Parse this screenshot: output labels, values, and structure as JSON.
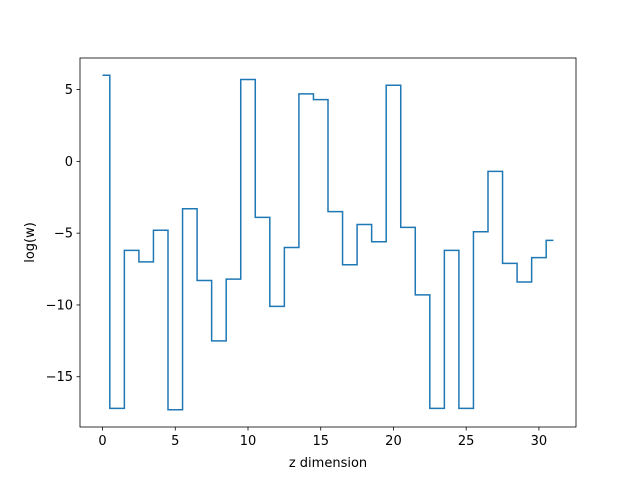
{
  "chart_data": {
    "type": "line",
    "drawstyle": "steps-mid",
    "title": "",
    "xlabel": "z dimension",
    "ylabel": "log(w)",
    "xlim": [
      -1.55,
      32.55
    ],
    "ylim": [
      -18.5,
      7.2
    ],
    "xticks": [
      0,
      5,
      10,
      15,
      20,
      25,
      30
    ],
    "yticks": [
      5,
      0,
      -5,
      -10,
      -15
    ],
    "ytick_labels": [
      "5",
      "0",
      "−5",
      "−10",
      "−15"
    ],
    "series": [
      {
        "color": "#1f77b4",
        "x": [
          0,
          1,
          2,
          3,
          4,
          5,
          6,
          7,
          8,
          9,
          10,
          11,
          12,
          13,
          14,
          15,
          16,
          17,
          18,
          19,
          20,
          21,
          22,
          23,
          24,
          25,
          26,
          27,
          28,
          29,
          30,
          31
        ],
        "y": [
          6.0,
          -17.2,
          -6.2,
          -7.0,
          -4.8,
          -17.3,
          -3.3,
          -8.3,
          -12.5,
          -8.2,
          5.7,
          -3.9,
          -10.1,
          -6.0,
          4.7,
          4.3,
          -3.5,
          -7.2,
          -4.4,
          -5.6,
          5.3,
          -4.6,
          -9.3,
          -17.2,
          -6.2,
          -17.2,
          -4.9,
          -0.7,
          -7.1,
          -8.4,
          -6.7,
          -5.5
        ]
      }
    ],
    "grid": false,
    "legend": "none"
  }
}
